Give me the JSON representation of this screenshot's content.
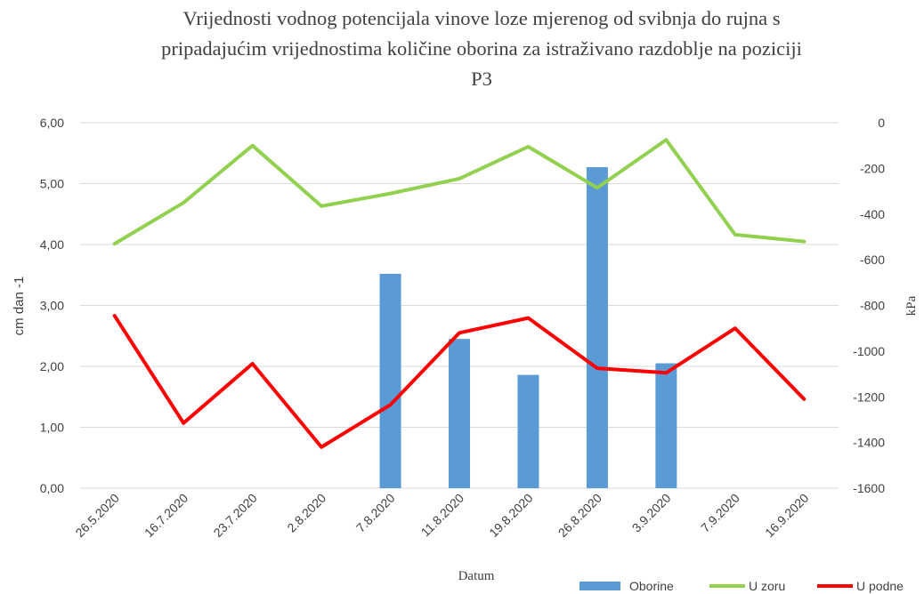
{
  "chart_data": {
    "type": "bar",
    "title_lines": [
      "Vrijednosti vodnog  potencijala vinove  loze mjerenog od svibnja  do rujna s",
      "pripadajućim  vrijednostima količine oborina za istraživano  razdoblje na poziciji",
      "P3"
    ],
    "xlabel": "Datum",
    "ylabel_left": "cm dan -1",
    "ylabel_right": "kPa",
    "categories": [
      "26.5.2020",
      "16.7.2020",
      "23.7.2020",
      "2.8.2020",
      "7.8.2020",
      "11.8.2020",
      "19.8.2020",
      "26.8.2020",
      "3.9.2020",
      "7.9.2020",
      "16.9.2020"
    ],
    "ylim_left": [
      0,
      6
    ],
    "ylim_right": [
      -1600,
      0
    ],
    "yticks_left": [
      "0,00",
      "1,00",
      "2,00",
      "3,00",
      "4,00",
      "5,00",
      "6,00"
    ],
    "yticks_right": [
      "-1600",
      "-1400",
      "-1200",
      "-1000",
      "-800",
      "-600",
      "-400",
      "-200",
      "0"
    ],
    "grid": true,
    "legend_position": "bottom-right",
    "series": [
      {
        "name": "Oborine",
        "type": "bar",
        "axis": "left",
        "color": "#5b9bd5",
        "values": [
          null,
          null,
          null,
          null,
          3.52,
          2.45,
          1.86,
          5.27,
          2.05,
          null,
          null
        ]
      },
      {
        "name": "U zoru",
        "type": "line",
        "axis": "right",
        "color": "#92d050",
        "values": [
          -530,
          -350,
          -100,
          -365,
          -310,
          -245,
          -105,
          -285,
          -75,
          -490,
          -520
        ]
      },
      {
        "name": "U podne",
        "type": "line",
        "axis": "right",
        "color": "#ff0000",
        "values": [
          -845,
          -1315,
          -1055,
          -1420,
          -1235,
          -920,
          -855,
          -1075,
          -1095,
          -900,
          -1210
        ]
      }
    ]
  }
}
